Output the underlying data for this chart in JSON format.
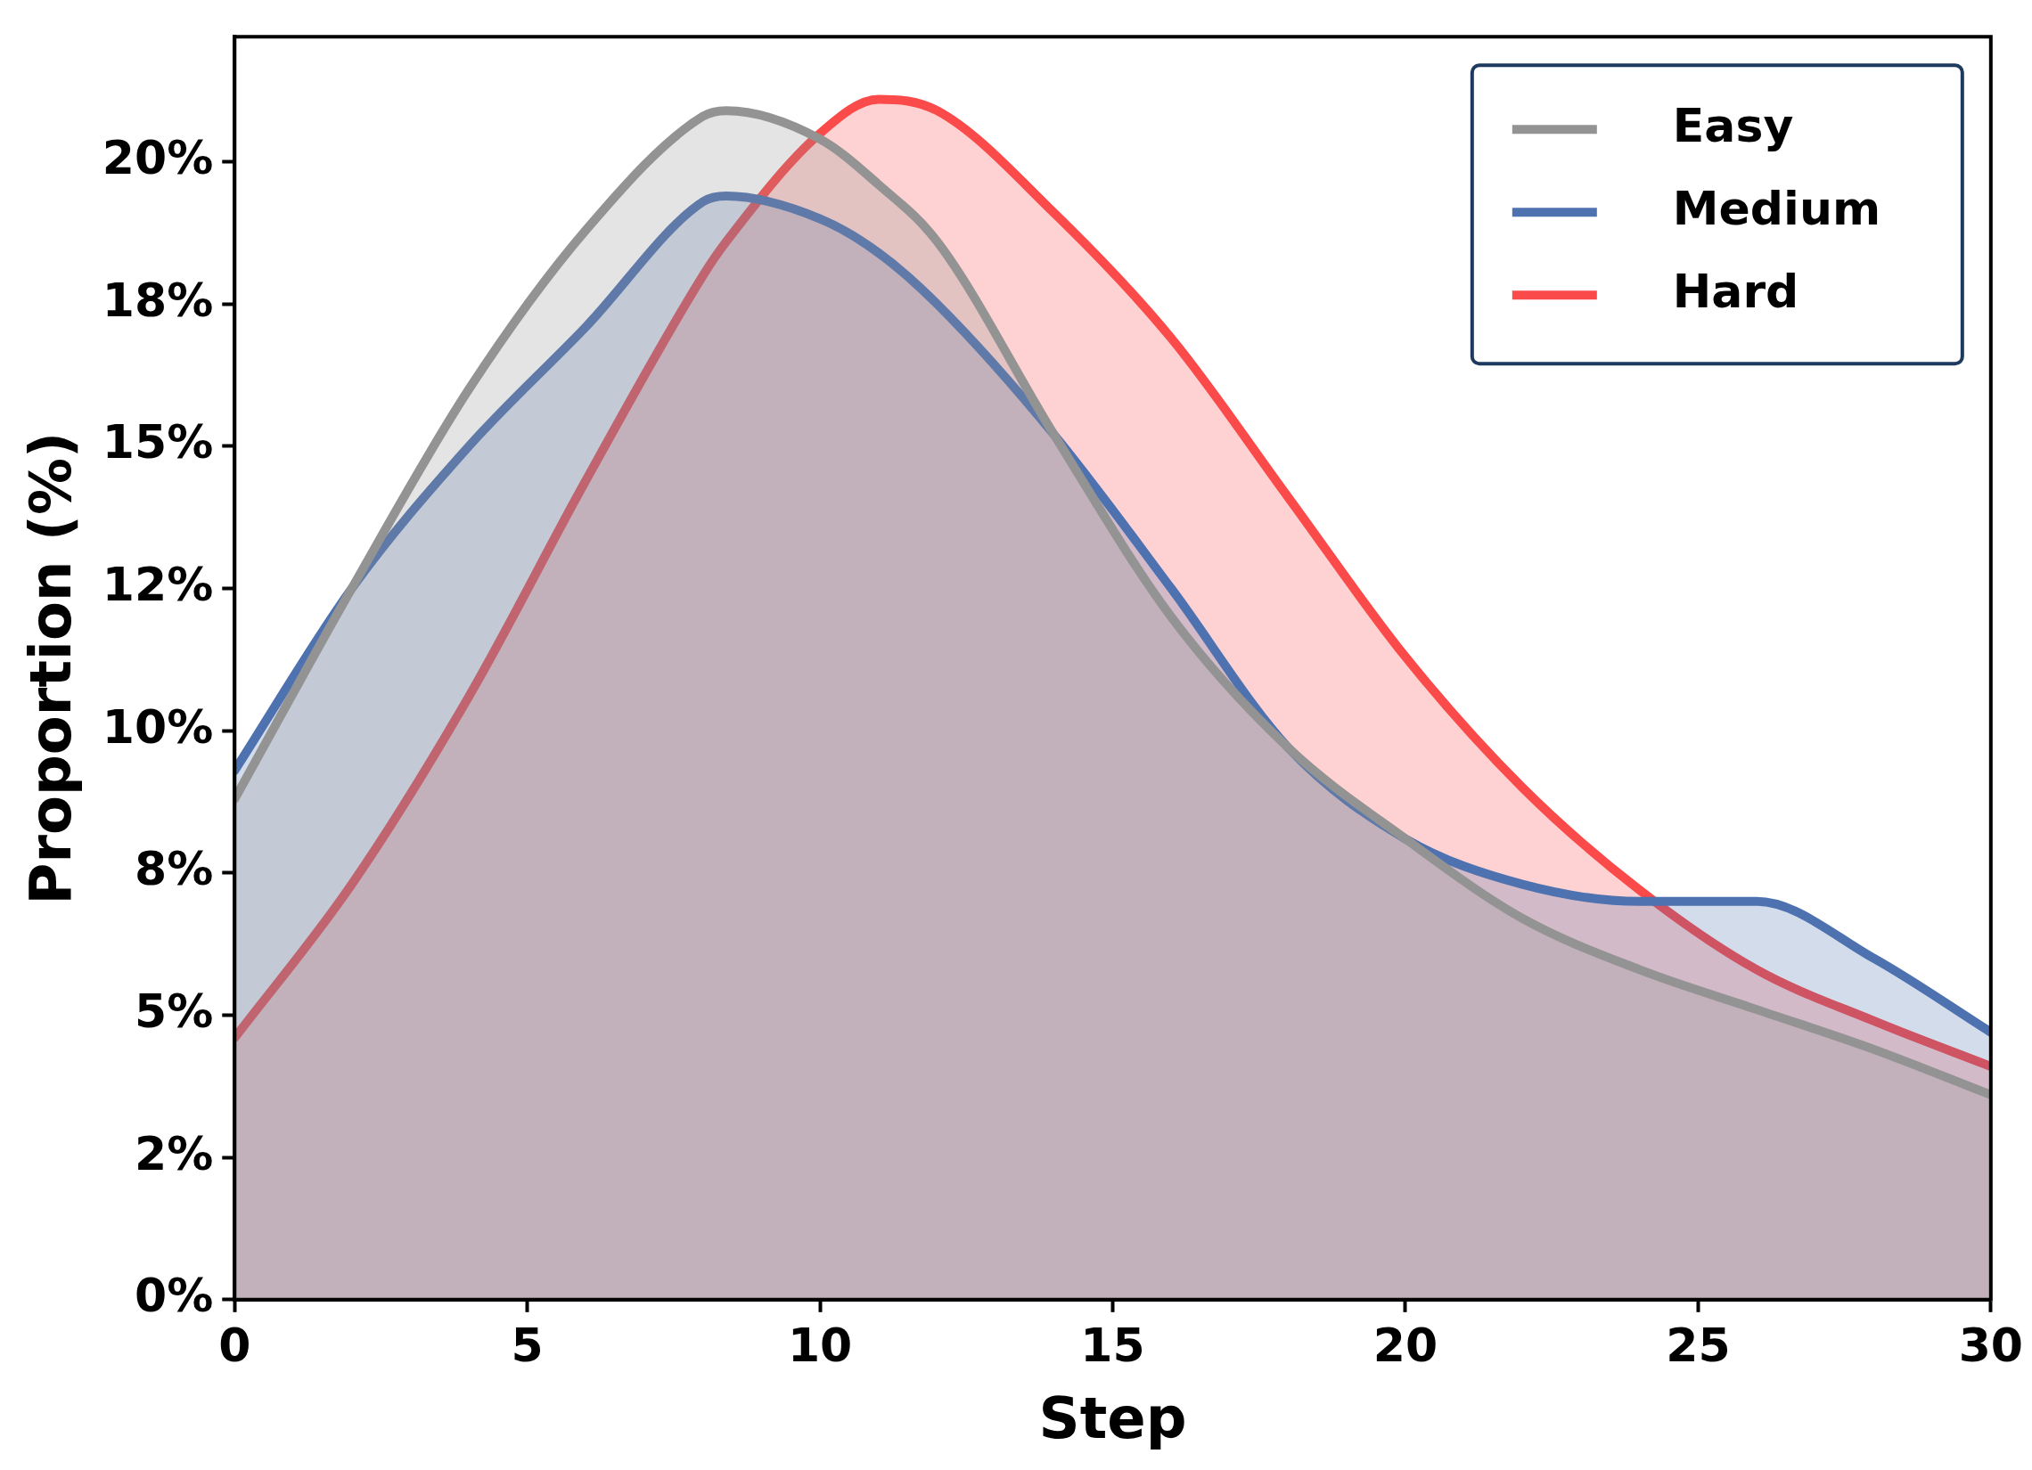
{
  "chart_data": {
    "type": "area",
    "xlabel": "Step",
    "ylabel": "Proportion (%)",
    "x": [
      0,
      2,
      4,
      6,
      8,
      8.4,
      10,
      11,
      12,
      14,
      16,
      18,
      20,
      22,
      24,
      26,
      28,
      30
    ],
    "series": [
      {
        "name": "Easy",
        "color": "#939393",
        "values": [
          8.8,
          12.5,
          16.0,
          18.8,
          20.8,
          20.9,
          20.4,
          19.6,
          18.6,
          15.2,
          12.0,
          9.7,
          8.1,
          6.7,
          5.8,
          5.1,
          4.4,
          3.6
        ]
      },
      {
        "name": "Medium",
        "color": "#4e72b0",
        "values": [
          9.3,
          12.5,
          15.0,
          17.1,
          19.3,
          19.4,
          19.0,
          18.4,
          17.5,
          15.2,
          12.5,
          9.7,
          8.1,
          7.3,
          7.0,
          7.0,
          6.0,
          4.7
        ]
      },
      {
        "name": "Hard",
        "color": "#fa4a4a",
        "values": [
          4.6,
          7.3,
          10.6,
          14.4,
          18.0,
          18.6,
          20.5,
          21.1,
          20.9,
          19.1,
          16.9,
          14.1,
          11.3,
          9.0,
          7.2,
          5.8,
          4.9,
          4.1
        ]
      }
    ],
    "xlim": [
      0,
      30
    ],
    "xticks": [
      0,
      5,
      10,
      15,
      20,
      25,
      30
    ],
    "ylim": [
      0,
      22.2
    ],
    "yticks": [
      {
        "value": 0,
        "label": "0%"
      },
      {
        "value": 2.5,
        "label": "2%"
      },
      {
        "value": 5,
        "label": "5%"
      },
      {
        "value": 7.5,
        "label": "8%"
      },
      {
        "value": 10,
        "label": "10%"
      },
      {
        "value": 12.5,
        "label": "12%"
      },
      {
        "value": 15,
        "label": "15%"
      },
      {
        "value": 17.5,
        "label": "18%"
      },
      {
        "value": 20,
        "label": "20%"
      }
    ],
    "grid": false,
    "legend": "top right",
    "line_style": "solid",
    "marker": "none"
  }
}
